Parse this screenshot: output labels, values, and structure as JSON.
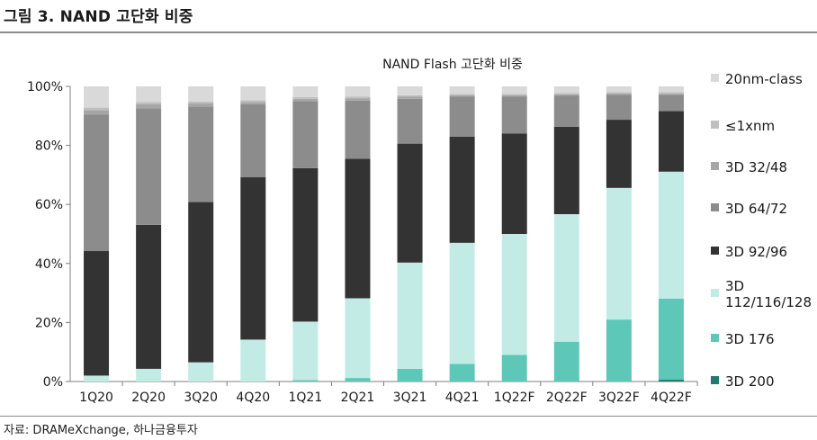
{
  "figure": {
    "title": "그림 3. NAND 고단화 비중",
    "source": "자료: DRAMeXchange, 하나금융투자"
  },
  "chart_data": {
    "type": "bar",
    "stacked": true,
    "title": "NAND Flash 고단화 비중",
    "categories": [
      "1Q20",
      "2Q20",
      "3Q20",
      "4Q20",
      "1Q21",
      "2Q21",
      "3Q21",
      "4Q21",
      "1Q22F",
      "2Q22F",
      "3Q22F",
      "4Q22F"
    ],
    "ylim": [
      0,
      100
    ],
    "yticks": [
      "0%",
      "20%",
      "40%",
      "60%",
      "80%",
      "100%"
    ],
    "grid": false,
    "legend_position": "right",
    "series": [
      {
        "name": "3D 200",
        "color": "#1f7a72",
        "values": [
          0,
          0,
          0,
          0,
          0,
          0,
          0,
          0,
          0,
          0,
          0,
          0.6
        ]
      },
      {
        "name": "3D 176",
        "color": "#5ec8b8",
        "values": [
          0,
          0,
          0,
          0,
          0.5,
          1.2,
          4.3,
          6,
          9,
          13.5,
          21,
          27.5
        ]
      },
      {
        "name": "3D\n112/116/128",
        "color": "#c3ebe5",
        "values": [
          2,
          4.3,
          6.5,
          14.2,
          19.8,
          27,
          36,
          41,
          41,
          43.2,
          44.6,
          43
        ]
      },
      {
        "name": "3D 92/96",
        "color": "#333333",
        "values": [
          42.2,
          48.8,
          54.3,
          55,
          52,
          47.3,
          40.3,
          36,
          34,
          29.6,
          23.1,
          20.5
        ]
      },
      {
        "name": "3D 64/72",
        "color": "#8c8c8c",
        "values": [
          46.2,
          39.5,
          32.4,
          24.8,
          22.7,
          19.7,
          15.2,
          13.5,
          12.5,
          10.5,
          8.5,
          5.5
        ]
      },
      {
        "name": "3D 32/48",
        "color": "#a6a6a6",
        "values": [
          1.5,
          1.3,
          1,
          0.7,
          0.8,
          0.8,
          0.7,
          0.5,
          0.5,
          0.5,
          0.4,
          0.4
        ]
      },
      {
        "name": "≤1xnm",
        "color": "#bfbfbf",
        "values": [
          0.9,
          0.8,
          0.7,
          0.6,
          0.6,
          0.5,
          0.5,
          0.5,
          0.5,
          0.5,
          0.5,
          0.5
        ]
      },
      {
        "name": "20nm-class",
        "color": "#d9d9d9",
        "values": [
          7.2,
          5.3,
          5.1,
          4.7,
          3.6,
          3.5,
          3,
          2.5,
          2.5,
          2.2,
          1.9,
          2
        ]
      }
    ],
    "legend_order": [
      "20nm-class",
      "≤1xnm",
      "3D 32/48",
      "3D 64/72",
      "3D 92/96",
      "3D\n112/116/128",
      "3D 176",
      "3D 200"
    ]
  }
}
